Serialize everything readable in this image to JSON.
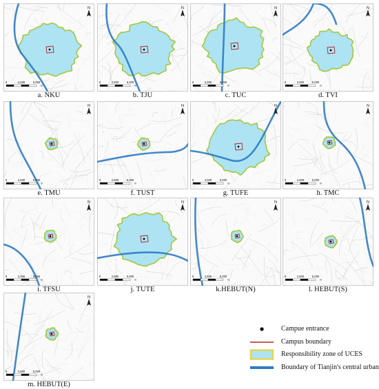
{
  "colors": {
    "zone_fill": "#aee3f3",
    "zone_edge": "#a3c83a",
    "boundary": "#2f7bc4",
    "roads": "#c8c8c8",
    "campus": "#b22222"
  },
  "panels": [
    {
      "id": "a",
      "caption": "a. NKU",
      "zone": "large",
      "river": "a"
    },
    {
      "id": "b",
      "caption": "b. TJU",
      "zone": "large",
      "river": "b"
    },
    {
      "id": "c",
      "caption": "c. TUC",
      "zone": "large",
      "river": "c"
    },
    {
      "id": "d",
      "caption": "d. TVI",
      "zone": "medium",
      "river": "d"
    },
    {
      "id": "e",
      "caption": "e. TMU",
      "zone": "small",
      "river": "e"
    },
    {
      "id": "f",
      "caption": "f. TUST",
      "zone": "small",
      "river": "f"
    },
    {
      "id": "g",
      "caption": "g. TUFE",
      "zone": "large",
      "river": "g"
    },
    {
      "id": "h",
      "caption": "h. TMC",
      "zone": "small",
      "river": "h"
    },
    {
      "id": "i",
      "caption": "i. TFSU",
      "zone": "small",
      "river": "i"
    },
    {
      "id": "j",
      "caption": "j. TUTE",
      "zone": "large",
      "river": "j"
    },
    {
      "id": "k",
      "caption": "k.HEBUT(N)",
      "zone": "small",
      "river": "k"
    },
    {
      "id": "l",
      "caption": "l. HEBUT(S)",
      "zone": "small",
      "river": "l"
    },
    {
      "id": "m",
      "caption": "m. HEBUT(E)",
      "zone": "small",
      "river": "m"
    }
  ],
  "scalebar": {
    "labels": [
      "0",
      "2,500",
      "5,000"
    ],
    "unit": "m"
  },
  "north_label": "N",
  "legend": [
    {
      "key": "entrance",
      "label": "Campue entrance"
    },
    {
      "key": "campus",
      "label": "Campus boundary"
    },
    {
      "key": "zone",
      "label": "Responsibility zone of UCES"
    },
    {
      "key": "boundary",
      "label": "Boundary of Tianjin's central urban area"
    }
  ]
}
